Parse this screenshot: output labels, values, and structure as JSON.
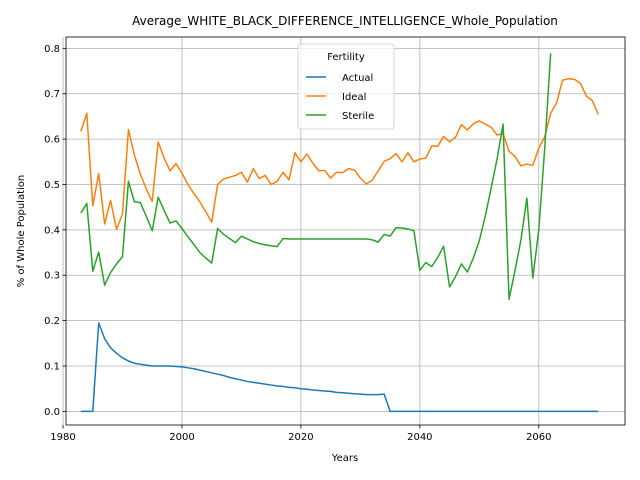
{
  "chart_data": {
    "type": "line",
    "title": "Average_WHITE_BLACK_DIFFERENCE_INTELLIGENCE_Whole_Population",
    "xlabel": "Years",
    "ylabel": "% of Whole Population",
    "xlim": [
      1980.5,
      2074.5
    ],
    "ylim": [
      -0.03,
      0.825
    ],
    "xticks": [
      1980,
      2000,
      2020,
      2040,
      2060
    ],
    "yticks": [
      0.0,
      0.1,
      0.2,
      0.3,
      0.4,
      0.5,
      0.6,
      0.7,
      0.8
    ],
    "grid": true,
    "legend": {
      "title": "Fertility",
      "placement": "upper center"
    },
    "colors": {
      "Actual": "#1f77b4",
      "Ideal": "#ff7f0e",
      "Sterile": "#2ca02c"
    },
    "series": [
      {
        "name": "Actual",
        "x": [
          1983,
          1984,
          1985,
          1986,
          1987,
          1988,
          1989,
          1990,
          1991,
          1992,
          1993,
          1994,
          1995,
          1996,
          1997,
          1998,
          1999,
          2000,
          2001,
          2002,
          2003,
          2004,
          2005,
          2006,
          2007,
          2008,
          2009,
          2010,
          2011,
          2012,
          2013,
          2014,
          2015,
          2016,
          2017,
          2018,
          2019,
          2020,
          2021,
          2022,
          2023,
          2024,
          2025,
          2026,
          2027,
          2028,
          2029,
          2030,
          2031,
          2032,
          2033,
          2034,
          2035,
          2036,
          2037,
          2038,
          2039,
          2040,
          2041,
          2042,
          2043,
          2044,
          2045,
          2046,
          2047,
          2048,
          2049,
          2050,
          2051,
          2052,
          2053,
          2054,
          2055,
          2056,
          2057,
          2058,
          2059,
          2060,
          2061,
          2062,
          2063,
          2064,
          2065,
          2066,
          2067,
          2068,
          2069,
          2070
        ],
        "y": [
          0.0,
          0.0,
          0.0,
          0.195,
          0.16,
          0.14,
          0.128,
          0.118,
          0.111,
          0.106,
          0.104,
          0.102,
          0.1,
          0.1,
          0.1,
          0.1,
          0.099,
          0.098,
          0.096,
          0.094,
          0.091,
          0.088,
          0.085,
          0.082,
          0.079,
          0.075,
          0.072,
          0.069,
          0.066,
          0.064,
          0.062,
          0.06,
          0.058,
          0.056,
          0.055,
          0.053,
          0.052,
          0.05,
          0.049,
          0.047,
          0.046,
          0.045,
          0.044,
          0.042,
          0.041,
          0.04,
          0.039,
          0.038,
          0.037,
          0.037,
          0.037,
          0.038,
          0.0,
          0.0,
          0.0,
          0.0,
          0.0,
          0.0,
          0.0,
          0.0,
          0.0,
          0.0,
          0.0,
          0.0,
          0.0,
          0.0,
          0.0,
          0.0,
          0.0,
          0.0,
          0.0,
          0.0,
          0.0,
          0.0,
          0.0,
          0.0,
          0.0,
          0.0,
          0.0,
          0.0,
          0.0,
          0.0,
          0.0,
          0.0,
          0.0,
          0.0,
          0.0,
          0.0
        ]
      },
      {
        "name": "Ideal",
        "x": [
          1983,
          1984,
          1985,
          1986,
          1987,
          1988,
          1989,
          1990,
          1991,
          1992,
          1993,
          1994,
          1995,
          1996,
          1997,
          1998,
          1999,
          2000,
          2001,
          2002,
          2003,
          2004,
          2005,
          2006,
          2007,
          2008,
          2009,
          2010,
          2011,
          2012,
          2013,
          2014,
          2015,
          2016,
          2017,
          2018,
          2019,
          2020,
          2021,
          2022,
          2023,
          2024,
          2025,
          2026,
          2027,
          2028,
          2029,
          2030,
          2031,
          2032,
          2033,
          2034,
          2035,
          2036,
          2037,
          2038,
          2039,
          2040,
          2041,
          2042,
          2043,
          2044,
          2045,
          2046,
          2047,
          2048,
          2049,
          2050,
          2051,
          2052,
          2053,
          2054,
          2055,
          2056,
          2057,
          2058,
          2059,
          2060,
          2061,
          2062,
          2063,
          2064,
          2065,
          2066,
          2067,
          2068,
          2069,
          2070
        ],
        "y": [
          0.617,
          0.657,
          0.453,
          0.524,
          0.413,
          0.465,
          0.401,
          0.435,
          0.621,
          0.565,
          0.523,
          0.49,
          0.463,
          0.594,
          0.558,
          0.53,
          0.546,
          0.525,
          0.5,
          0.48,
          0.462,
          0.44,
          0.417,
          0.5,
          0.512,
          0.516,
          0.52,
          0.527,
          0.505,
          0.535,
          0.513,
          0.52,
          0.5,
          0.507,
          0.527,
          0.51,
          0.57,
          0.55,
          0.567,
          0.547,
          0.53,
          0.531,
          0.514,
          0.527,
          0.526,
          0.535,
          0.532,
          0.514,
          0.501,
          0.51,
          0.53,
          0.551,
          0.557,
          0.568,
          0.55,
          0.57,
          0.55,
          0.556,
          0.558,
          0.585,
          0.584,
          0.606,
          0.594,
          0.604,
          0.632,
          0.62,
          0.634,
          0.64,
          0.633,
          0.626,
          0.609,
          0.612,
          0.573,
          0.562,
          0.541,
          0.545,
          0.542,
          0.58,
          0.605,
          0.657,
          0.68,
          0.73,
          0.733,
          0.732,
          0.723,
          0.695,
          0.685,
          0.655
        ]
      },
      {
        "name": "Sterile",
        "x": [
          1983,
          1984,
          1985,
          1986,
          1987,
          1988,
          1989,
          1990,
          1991,
          1992,
          1993,
          1994,
          1995,
          1996,
          1997,
          1998,
          1999,
          2000,
          2001,
          2002,
          2003,
          2004,
          2005,
          2006,
          2007,
          2008,
          2009,
          2010,
          2011,
          2012,
          2013,
          2014,
          2015,
          2016,
          2017,
          2018,
          2019,
          2020,
          2021,
          2022,
          2023,
          2024,
          2025,
          2026,
          2027,
          2028,
          2029,
          2030,
          2031,
          2032,
          2033,
          2034,
          2035,
          2036,
          2037,
          2038,
          2039,
          2040,
          2041,
          2042,
          2043,
          2044,
          2045,
          2046,
          2047,
          2048,
          2049,
          2050,
          2051,
          2052,
          2053,
          2054,
          2055,
          2056,
          2057,
          2058,
          2059,
          2060,
          2061,
          2062
        ],
        "y": [
          0.437,
          0.458,
          0.309,
          0.351,
          0.278,
          0.306,
          0.325,
          0.341,
          0.507,
          0.462,
          0.46,
          0.43,
          0.398,
          0.472,
          0.443,
          0.415,
          0.42,
          0.403,
          0.385,
          0.368,
          0.35,
          0.338,
          0.327,
          0.403,
          0.39,
          0.381,
          0.372,
          0.386,
          0.38,
          0.374,
          0.37,
          0.367,
          0.365,
          0.363,
          0.381,
          0.38,
          0.38,
          0.38,
          0.38,
          0.38,
          0.38,
          0.38,
          0.38,
          0.38,
          0.38,
          0.38,
          0.38,
          0.38,
          0.38,
          0.378,
          0.373,
          0.39,
          0.386,
          0.405,
          0.404,
          0.402,
          0.398,
          0.311,
          0.328,
          0.319,
          0.339,
          0.364,
          0.274,
          0.297,
          0.325,
          0.307,
          0.338,
          0.376,
          0.43,
          0.493,
          0.557,
          0.633,
          0.247,
          0.31,
          0.378,
          0.47,
          0.294,
          0.4,
          0.58,
          0.789
        ]
      }
    ]
  }
}
